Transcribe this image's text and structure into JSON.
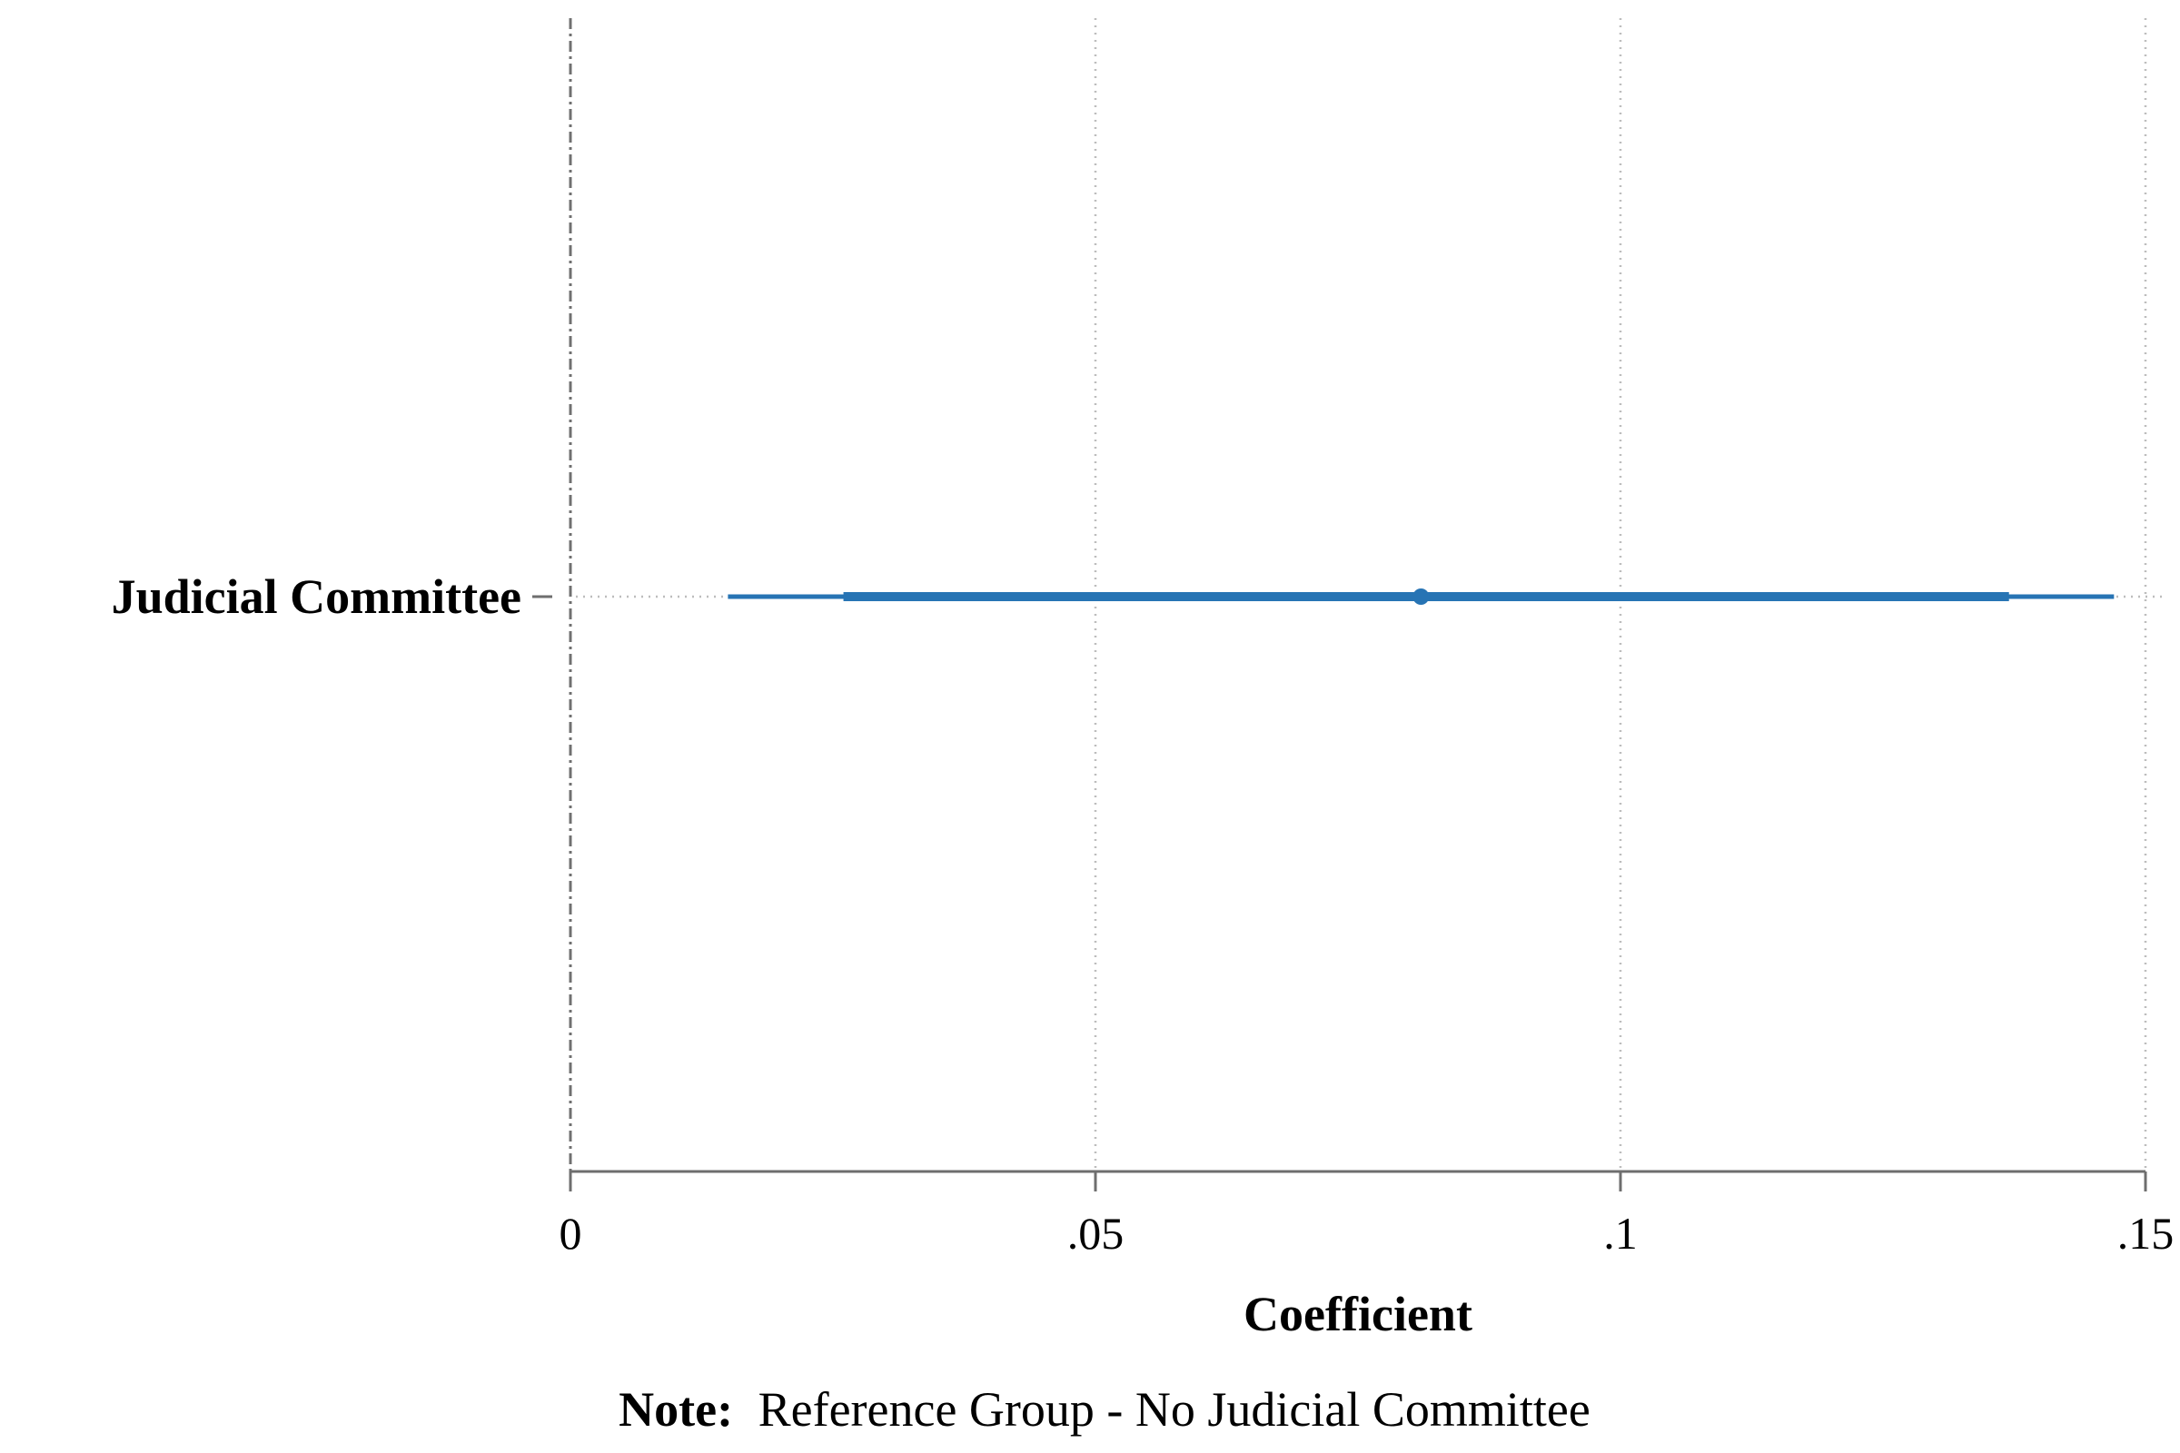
{
  "chart_data": {
    "type": "coefficient-plot",
    "categories": [
      "Judicial Committee"
    ],
    "series": [
      {
        "estimates": [
          0.081
        ],
        "ci_outer": [
          [
            0.015,
            0.147
          ]
        ],
        "ci_inner": [
          [
            0.026,
            0.137
          ]
        ]
      }
    ],
    "xlabel": "Coefficient",
    "ylabel": "",
    "xlim": [
      0,
      0.15
    ],
    "x_ticks": [
      {
        "value": 0,
        "label": "0"
      },
      {
        "value": 0.05,
        "label": ".05"
      },
      {
        "value": 0.1,
        "label": ".1"
      },
      {
        "value": 0.15,
        "label": ".15"
      }
    ],
    "reference_line": 0,
    "grid": true,
    "note_label": "Note:",
    "note_text": "Reference Group - No Judicial Committee",
    "color": "#2774b4"
  }
}
